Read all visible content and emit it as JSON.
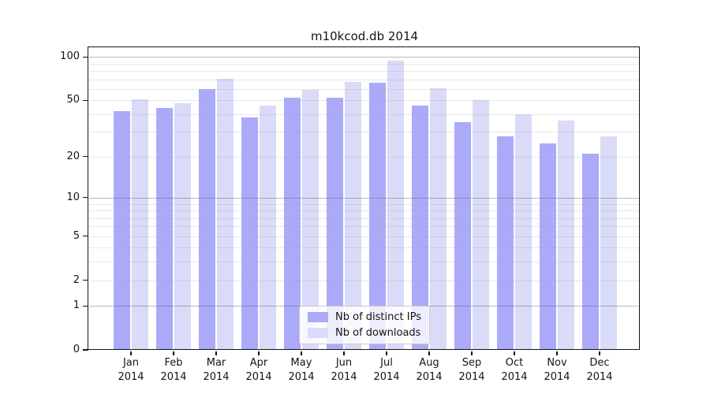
{
  "chart_data": {
    "type": "bar",
    "title": "m10kcod.db 2014",
    "categories": [
      "Jan",
      "Feb",
      "Mar",
      "Apr",
      "May",
      "Jun",
      "Jul",
      "Aug",
      "Sep",
      "Oct",
      "Nov",
      "Dec"
    ],
    "year_label": "2014",
    "series": [
      {
        "name": "Nb of distinct IPs",
        "color": "#abaafa",
        "values": [
          42,
          44,
          60,
          38,
          52,
          52,
          66,
          46,
          35,
          28,
          25,
          21
        ]
      },
      {
        "name": "Nb of downloads",
        "color": "#dadaf9",
        "values": [
          51,
          48,
          71,
          46,
          59,
          67,
          94,
          61,
          50,
          40,
          36,
          28
        ]
      }
    ],
    "xlabel": "",
    "ylabel": "",
    "y_axis": {
      "scale": "log(1+y)",
      "range": [
        0,
        115
      ],
      "tick_values": [
        100,
        50,
        20,
        10,
        5,
        2,
        1,
        0
      ],
      "tick_labels": [
        "100",
        "50",
        "20",
        "10",
        "5",
        "2",
        "1",
        "0"
      ],
      "gridlines_major": [
        100,
        10,
        1
      ],
      "gridlines_minor": [
        90,
        80,
        70,
        60,
        50,
        40,
        30,
        20,
        9,
        8,
        7,
        6,
        5,
        4,
        3,
        2
      ]
    },
    "grid": true,
    "legend": {
      "position": "lower center"
    },
    "colors": {
      "spine": "#141414",
      "text": "#141414",
      "background": "#ffffff"
    }
  }
}
